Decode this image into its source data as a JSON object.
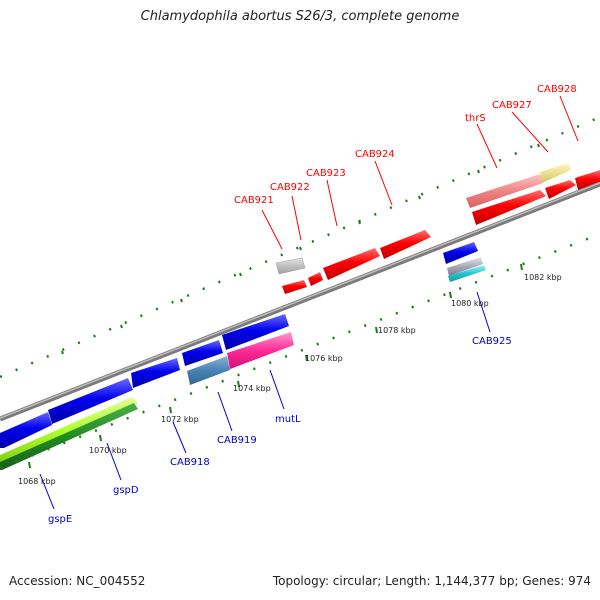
{
  "title": "Chlamydophila abortus S26/3, complete genome",
  "footer": {
    "accession": "Accession: NC_004552",
    "summary": "Topology: circular; Length: 1,144,377 bp; Genes: 974"
  },
  "colors": {
    "forward_label": "#ff0000",
    "reverse_label": "#0000cc",
    "backbone": "#888888",
    "tick": "#1e7a1e"
  },
  "ticks": [
    {
      "label": "1068 kbp"
    },
    {
      "label": "1070 kbp"
    },
    {
      "label": "1072 kbp"
    },
    {
      "label": "1074 kbp"
    },
    {
      "label": "1076 kbp"
    },
    {
      "label": "1078 kbp"
    },
    {
      "label": "1080 kbp"
    },
    {
      "label": "1082 kbp"
    }
  ],
  "forward_labels": [
    "CAB921",
    "CAB922",
    "CAB923",
    "CAB924",
    "thrS",
    "CAB927",
    "CAB928"
  ],
  "reverse_labels": [
    "gspE",
    "gspD",
    "CAB918",
    "CAB919",
    "mutL",
    "CAB925"
  ]
}
